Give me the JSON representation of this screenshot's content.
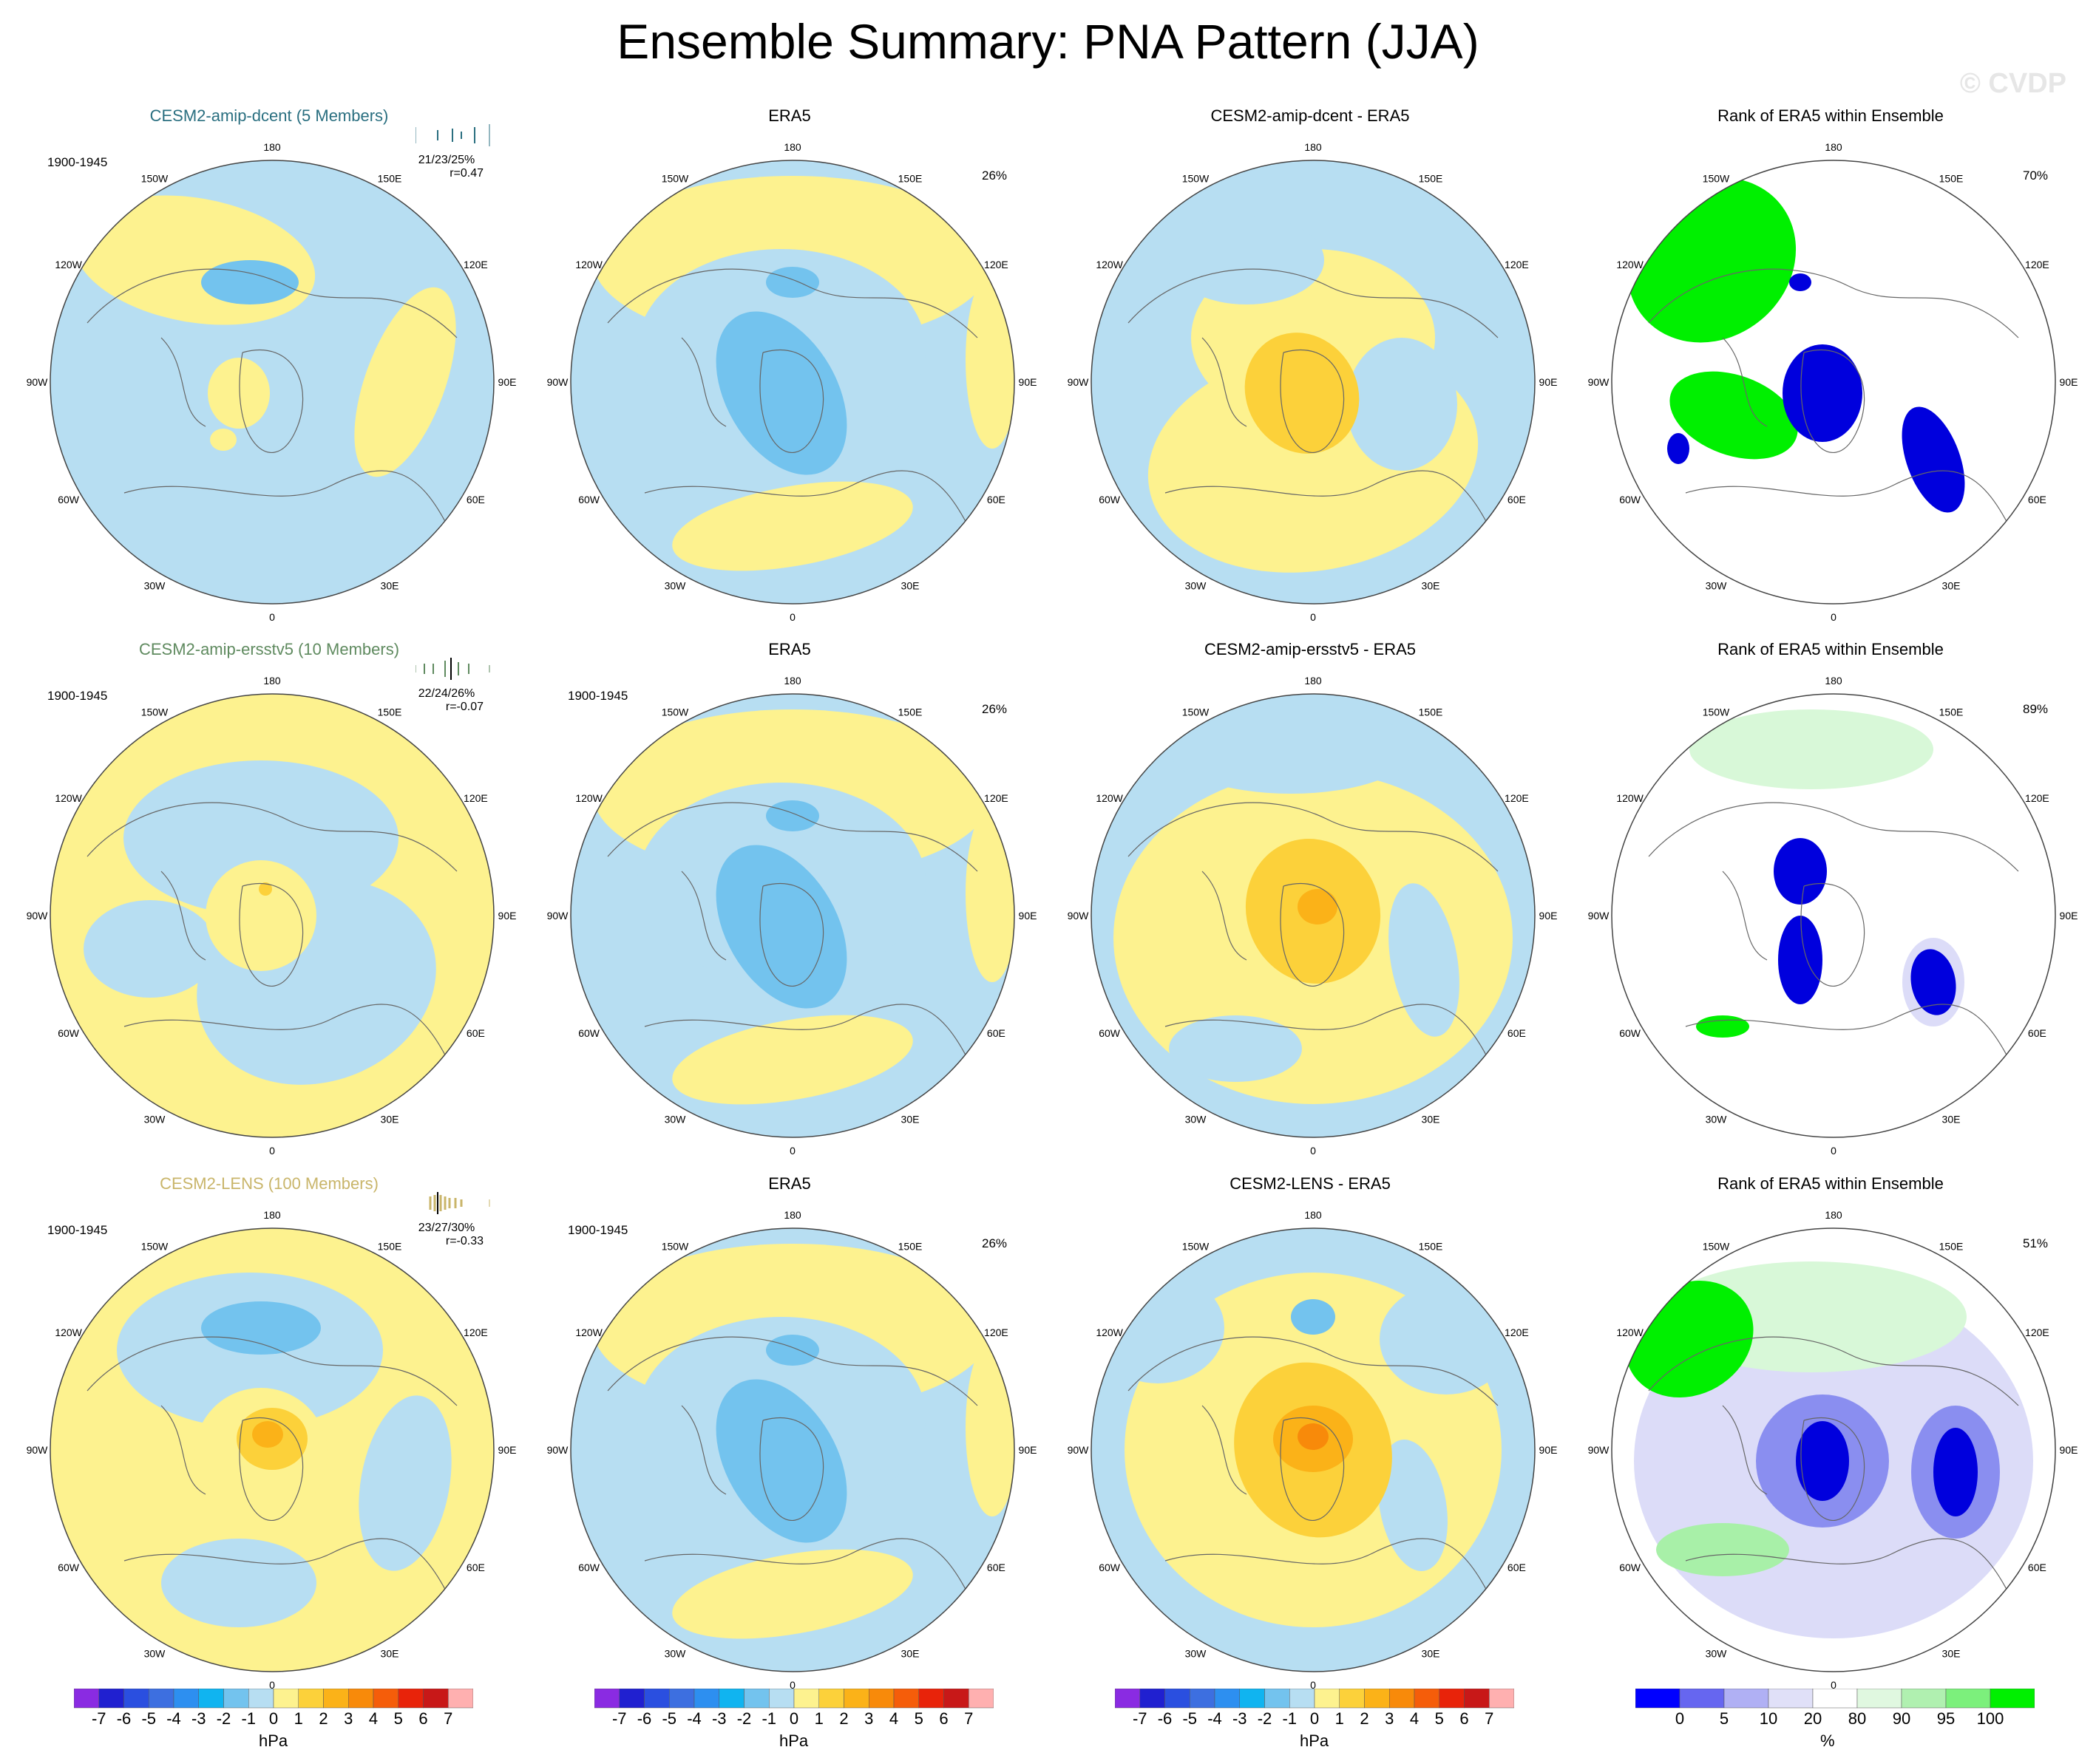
{
  "title": "Ensemble Summary: PNA Pattern (JJA)",
  "watermark": "© CVDP",
  "compass_labels": [
    "180",
    "150E",
    "120E",
    "90E",
    "60E",
    "30E",
    "0",
    "30W",
    "60W",
    "90W",
    "120W",
    "150W"
  ],
  "rows": [
    {
      "model_title": "CESM2-amip-dcent (5 Members)",
      "model_title_color": "#2a6f80",
      "period": "1900-1945",
      "stats": "21/23/25%",
      "corr": "r=0.47",
      "era5_title": "ERA5",
      "era5_period": "",
      "era5_pct": "26%",
      "diff_title": "CESM2-amip-dcent - ERA5",
      "rank_title": "Rank of ERA5 within Ensemble",
      "rank_pct": "70%"
    },
    {
      "model_title": "CESM2-amip-ersstv5 (10 Members)",
      "model_title_color": "#5f8a5f",
      "period": "1900-1945",
      "stats": "22/24/26%",
      "corr": "r=-0.07",
      "era5_title": "ERA5",
      "era5_period": "1900-1945",
      "era5_pct": "26%",
      "diff_title": "CESM2-amip-ersstv5 - ERA5",
      "rank_title": "Rank of ERA5 within Ensemble",
      "rank_pct": "89%"
    },
    {
      "model_title": "CESM2-LENS (100 Members)",
      "model_title_color": "#c9b56a",
      "period": "1900-1945",
      "stats": "23/27/30%",
      "corr": "r=-0.33",
      "era5_title": "ERA5",
      "era5_period": "1900-1945",
      "era5_pct": "26%",
      "diff_title": "CESM2-LENS - ERA5",
      "rank_title": "Rank of ERA5 within Ensemble",
      "rank_pct": "51%"
    }
  ],
  "colorbar_hpa": {
    "labels": [
      "-7",
      "-6",
      "-5",
      "-4",
      "-3",
      "-2",
      "-1",
      "0",
      "1",
      "2",
      "3",
      "4",
      "5",
      "6",
      "7"
    ],
    "colors": [
      "#8a2be2",
      "#2020d0",
      "#2a4fe0",
      "#3d6fe0",
      "#2d8ff0",
      "#10b4f0",
      "#73c3ee",
      "#b7def2",
      "#fdf28f",
      "#fcd13a",
      "#fbb218",
      "#f88a0a",
      "#f55d0a",
      "#e8230a",
      "#c81818",
      "#ffb0b0"
    ],
    "units": "hPa"
  },
  "colorbar_rank": {
    "labels": [
      "0",
      "5",
      "10",
      "20",
      "80",
      "90",
      "95",
      "100"
    ],
    "colors": [
      "#0000ff",
      "#6666f0",
      "#b0b0f4",
      "#e0e0f8",
      "#ffffff",
      "#e0f8e0",
      "#b0f0b0",
      "#7cf07c",
      "#00f000"
    ],
    "units": "%"
  }
}
